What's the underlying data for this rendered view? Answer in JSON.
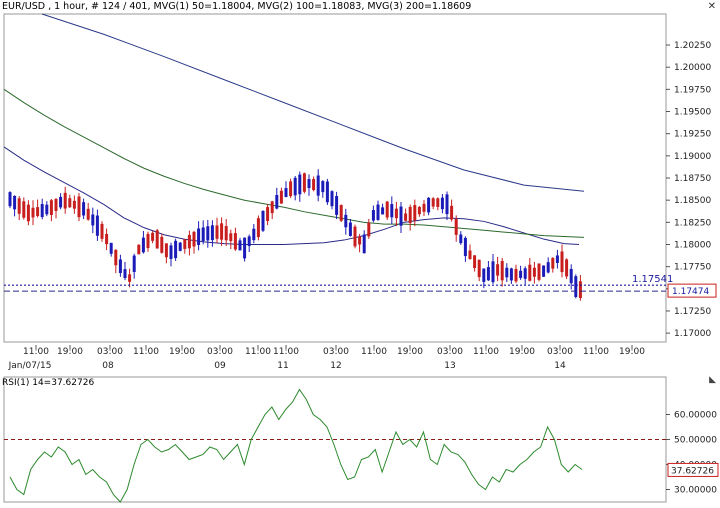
{
  "title": "EUR/USD , 1 hour, # 124 / 401, MVG(1) 50=1.18004, MVG(2) 100=1.18083, MVG(3) 200=1.18609",
  "rsi_title": "RSI(1) 14=37.62726",
  "icons": {
    "close": "close-icon",
    "collapse": "triangle-collapse-icon"
  },
  "colors": {
    "bull": "#1b1bb8",
    "bear": "#c81e1e",
    "mvg50": "#2a2a8a",
    "mvg100": "#2d6a2d",
    "mvg200": "#2a3a8a",
    "rsi": "#2d8a2d",
    "dashed": "#8b1a1a"
  },
  "chart_data": [
    {
      "type": "candlestick",
      "title": "EUR/USD , 1 hour",
      "ylim": [
        1.169,
        1.206
      ],
      "yticks": [
        "1.20250",
        "1.20000",
        "1.19750",
        "1.19500",
        "1.19250",
        "1.19000",
        "1.18750",
        "1.18500",
        "1.18250",
        "1.18000",
        "1.17750",
        "1.17500",
        "1.17250",
        "1.17000"
      ],
      "xticks": [
        "11:00",
        "19:00",
        "03:00",
        "11:00",
        "19:00",
        "03:00",
        "11:00",
        "11:00",
        "03:00",
        "11:00",
        "19:00",
        "03:00",
        "11:00",
        "19:00",
        "03:00",
        "11:00",
        "19:00"
      ],
      "date_labels": [
        "Jan/07/15",
        "08",
        "09",
        "11",
        "12",
        "13",
        "14"
      ],
      "reference_line": {
        "label": "1.17541",
        "value": 1.17541
      },
      "last_price": {
        "label": "1.17474",
        "value": 1.17474
      },
      "series": [
        {
          "name": "MVG(1) 50",
          "last": 1.18004,
          "points": [
            [
              0,
              1.191
            ],
            [
              20,
              1.1895
            ],
            [
              40,
              1.1882
            ],
            [
              60,
              1.187
            ],
            [
              80,
              1.1858
            ],
            [
              100,
              1.1845
            ],
            [
              120,
              1.183
            ],
            [
              140,
              1.1819
            ],
            [
              160,
              1.1811
            ],
            [
              180,
              1.1806
            ],
            [
              200,
              1.1803
            ],
            [
              220,
              1.1801
            ],
            [
              240,
              1.18
            ],
            [
              260,
              1.18
            ],
            [
              280,
              1.18
            ],
            [
              300,
              1.1801
            ],
            [
              320,
              1.1802
            ],
            [
              340,
              1.1805
            ],
            [
              360,
              1.181
            ],
            [
              380,
              1.1817
            ],
            [
              400,
              1.1825
            ],
            [
              420,
              1.1828
            ],
            [
              440,
              1.183
            ],
            [
              460,
              1.1829
            ],
            [
              480,
              1.1826
            ],
            [
              500,
              1.182
            ],
            [
              520,
              1.1813
            ],
            [
              540,
              1.1806
            ],
            [
              560,
              1.1801
            ],
            [
              575,
              1.18
            ]
          ]
        },
        {
          "name": "MVG(2) 100",
          "last": 1.18083,
          "points": [
            [
              0,
              1.1975
            ],
            [
              20,
              1.196
            ],
            [
              40,
              1.1946
            ],
            [
              60,
              1.1933
            ],
            [
              80,
              1.1921
            ],
            [
              100,
              1.1909
            ],
            [
              120,
              1.1897
            ],
            [
              140,
              1.1886
            ],
            [
              160,
              1.1877
            ],
            [
              180,
              1.1869
            ],
            [
              200,
              1.1862
            ],
            [
              220,
              1.1856
            ],
            [
              240,
              1.185
            ],
            [
              260,
              1.1846
            ],
            [
              280,
              1.1842
            ],
            [
              300,
              1.1837
            ],
            [
              320,
              1.1833
            ],
            [
              340,
              1.1829
            ],
            [
              360,
              1.1825
            ],
            [
              380,
              1.1823
            ],
            [
              400,
              1.1823
            ],
            [
              420,
              1.1822
            ],
            [
              440,
              1.182
            ],
            [
              460,
              1.1818
            ],
            [
              480,
              1.1816
            ],
            [
              500,
              1.1814
            ],
            [
              520,
              1.1812
            ],
            [
              540,
              1.181
            ],
            [
              560,
              1.1809
            ],
            [
              580,
              1.1808
            ]
          ]
        },
        {
          "name": "MVG(3) 200",
          "last": 1.18609,
          "points": [
            [
              38,
              1.206
            ],
            [
              100,
              1.2037
            ],
            [
              160,
              1.2012
            ],
            [
              220,
              1.1986
            ],
            [
              280,
              1.196
            ],
            [
              340,
              1.1934
            ],
            [
              400,
              1.1908
            ],
            [
              460,
              1.1884
            ],
            [
              520,
              1.1867
            ],
            [
              580,
              1.186
            ]
          ]
        }
      ]
    },
    {
      "type": "line",
      "title": "RSI(1) 14",
      "last": 37.62726,
      "ylim": [
        25,
        75
      ],
      "yticks": [
        "60.00000",
        "50.00000",
        "40.00000",
        "30.00000"
      ],
      "reference_line": 50,
      "last_label": "37.62726",
      "series": [
        {
          "name": "RSI(1) 14",
          "values": [
            35,
            30,
            28,
            38,
            42,
            45,
            43,
            47,
            45,
            40,
            42,
            36,
            38,
            35,
            33,
            28,
            25,
            30,
            40,
            48,
            50,
            47,
            45,
            46,
            48,
            45,
            42,
            43,
            44,
            47,
            46,
            42,
            45,
            48,
            40,
            50,
            55,
            60,
            63,
            58,
            62,
            65,
            70,
            66,
            60,
            58,
            55,
            48,
            40,
            34,
            35,
            42,
            43,
            46,
            37,
            45,
            53,
            48,
            50,
            47,
            53,
            42,
            40,
            48,
            45,
            44,
            41,
            36,
            32,
            30,
            35,
            33,
            38,
            37,
            40,
            42,
            45,
            47,
            55,
            50,
            40,
            37,
            40,
            38
          ]
        }
      ]
    }
  ]
}
